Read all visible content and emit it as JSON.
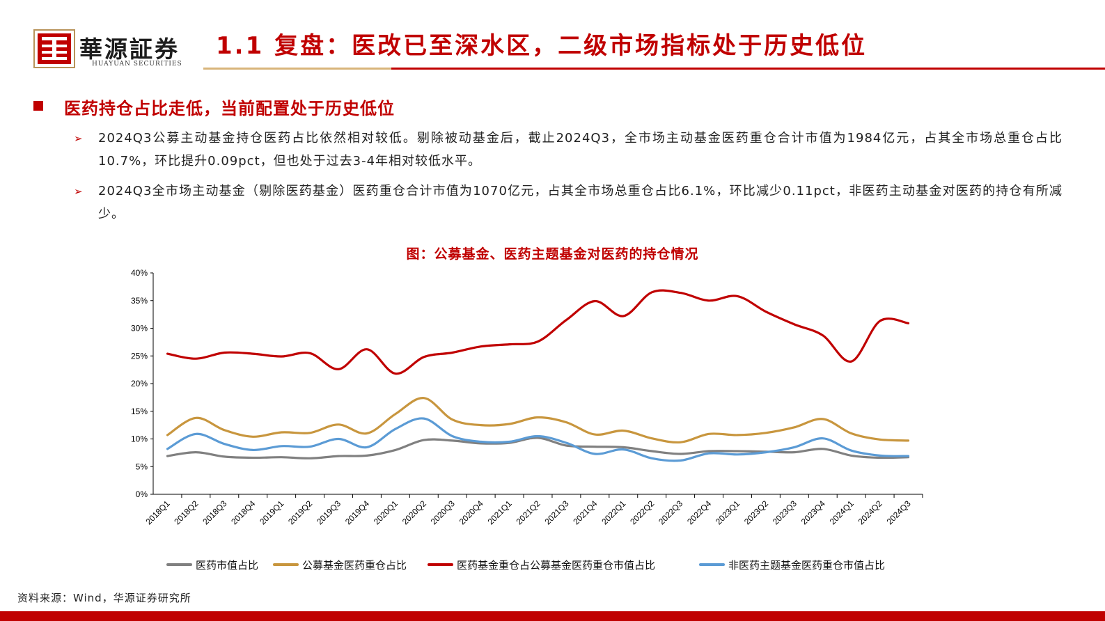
{
  "header": {
    "logo_cn": "華源証券",
    "logo_en": "HUAYUAN SECURITIES",
    "title": "1.1 复盘：医改已至深水区，二级市场指标处于历史低位"
  },
  "section": {
    "title": "医药持仓占比走低，当前配置处于历史低位",
    "bullets": [
      "2024Q3公募主动基金持仓医药占比依然相对较低。剔除被动基金后，截止2024Q3，全市场主动基金医药重仓合计市值为1984亿元，占其全市场总重仓占比10.7%，环比提升0.09pct，但也处于过去3-4年相对较低水平。",
      "2024Q3全市场主动基金（剔除医药基金）医药重仓合计市值为1070亿元，占其全市场总重仓占比6.1%，环比减少0.11pct，非医药主动基金对医药的持仓有所减少。"
    ]
  },
  "chart_title": "图：公募基金、医药主题基金对医药的持仓情况",
  "chart_data": {
    "type": "line",
    "title": "图：公募基金、医药主题基金对医药的持仓情况",
    "categories": [
      "2018Q1",
      "2018Q2",
      "2018Q3",
      "2018Q4",
      "2019Q1",
      "2019Q2",
      "2019Q3",
      "2019Q4",
      "2020Q1",
      "2020Q2",
      "2020Q3",
      "2020Q4",
      "2021Q1",
      "2021Q2",
      "2021Q3",
      "2021Q4",
      "2022Q1",
      "2022Q2",
      "2022Q3",
      "2022Q4",
      "2023Q1",
      "2023Q2",
      "2023Q3",
      "2023Q4",
      "2024Q1",
      "2024Q2",
      "2024Q3"
    ],
    "yticks": [
      "0%",
      "5%",
      "10%",
      "15%",
      "20%",
      "25%",
      "30%",
      "35%",
      "40%"
    ],
    "ylim": [
      0,
      40
    ],
    "grid": false,
    "legend_position": "bottom",
    "series": [
      {
        "name": "医药市值占比",
        "color": "#808080",
        "values": [
          6.9,
          7.6,
          6.8,
          6.6,
          6.7,
          6.5,
          6.9,
          7.0,
          8.0,
          9.8,
          9.7,
          9.2,
          9.3,
          10.2,
          8.8,
          8.6,
          8.5,
          7.8,
          7.3,
          7.8,
          7.8,
          7.7,
          7.6,
          8.2,
          7.0,
          6.6,
          6.7
        ]
      },
      {
        "name": "公募基金医药重仓占比",
        "color": "#c8963e",
        "values": [
          10.7,
          13.8,
          11.6,
          10.4,
          11.2,
          11.1,
          12.6,
          11.0,
          14.5,
          17.4,
          13.5,
          12.5,
          12.7,
          13.9,
          13.0,
          10.8,
          11.5,
          10.1,
          9.4,
          10.9,
          10.7,
          11.1,
          12.1,
          13.6,
          11.0,
          9.9,
          9.7
        ]
      },
      {
        "name": "医药基金重仓占公募基金医药重仓市值占比",
        "color": "#c00000",
        "values": [
          25.4,
          24.5,
          25.6,
          25.4,
          24.9,
          25.5,
          22.6,
          26.2,
          21.8,
          24.8,
          25.6,
          26.7,
          27.1,
          27.6,
          31.5,
          34.9,
          32.2,
          36.5,
          36.4,
          35.0,
          35.8,
          33.0,
          30.7,
          28.7,
          24.0,
          31.3,
          30.9
        ]
      },
      {
        "name": "非医药主题基金医药重仓市值占比",
        "color": "#5b9bd5",
        "values": [
          8.2,
          10.9,
          9.1,
          8.0,
          8.7,
          8.6,
          10.0,
          8.5,
          11.8,
          13.7,
          10.5,
          9.5,
          9.5,
          10.5,
          9.3,
          7.3,
          8.1,
          6.5,
          6.1,
          7.4,
          7.2,
          7.6,
          8.5,
          10.1,
          7.9,
          7.0,
          6.9
        ]
      }
    ]
  },
  "source": "资料来源：Wind，华源证券研究所"
}
